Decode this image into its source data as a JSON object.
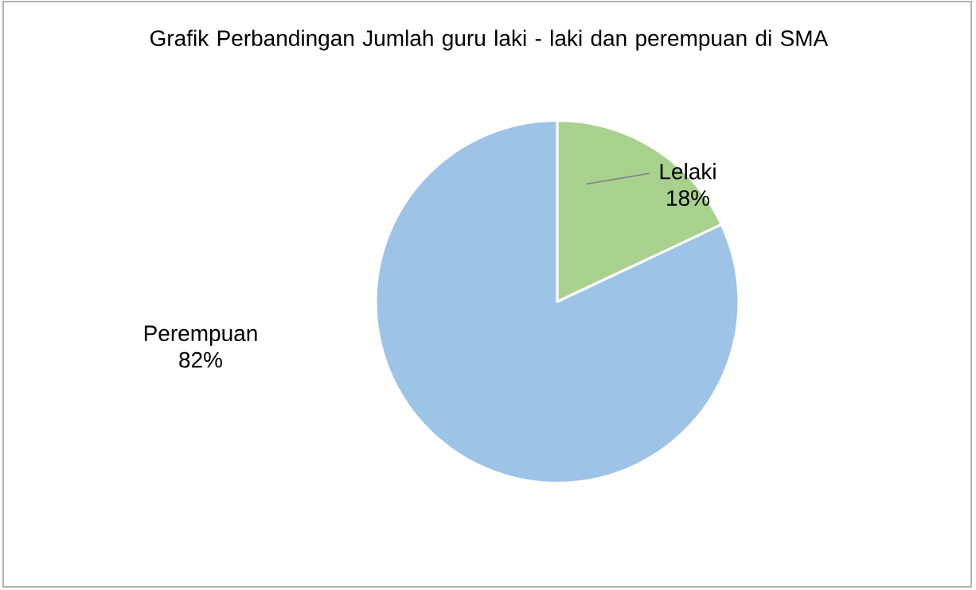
{
  "chart_data": {
    "type": "pie",
    "title": "Grafik Perbandingan Jumlah guru laki - laki dan perempuan di SMA",
    "categories": [
      "Lelaki",
      "Perempuan"
    ],
    "values": [
      18,
      82
    ],
    "value_labels": [
      "18%",
      "82%"
    ],
    "colors": [
      "#a9d18e",
      "#9dc3e6"
    ]
  }
}
